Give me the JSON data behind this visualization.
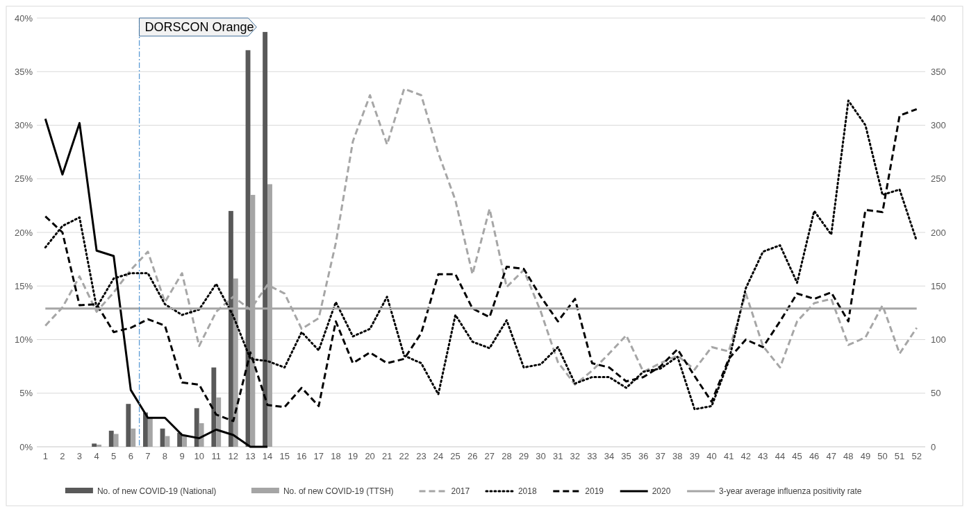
{
  "chart_data": {
    "type": "line",
    "x": [
      1,
      2,
      3,
      4,
      5,
      6,
      7,
      8,
      9,
      10,
      11,
      12,
      13,
      14,
      15,
      16,
      17,
      18,
      19,
      20,
      21,
      22,
      23,
      24,
      25,
      26,
      27,
      28,
      29,
      30,
      31,
      32,
      33,
      34,
      35,
      36,
      37,
      38,
      39,
      40,
      41,
      42,
      43,
      44,
      45,
      46,
      47,
      48,
      49,
      50,
      51,
      52
    ],
    "xlim": [
      0.5,
      52.5
    ],
    "xticks": [
      1,
      2,
      3,
      4,
      5,
      6,
      7,
      8,
      9,
      10,
      11,
      12,
      13,
      14,
      15,
      16,
      17,
      18,
      19,
      20,
      21,
      22,
      23,
      24,
      25,
      26,
      27,
      28,
      29,
      30,
      31,
      32,
      33,
      34,
      35,
      36,
      37,
      38,
      39,
      40,
      41,
      42,
      43,
      44,
      45,
      46,
      47,
      48,
      49,
      50,
      51,
      52
    ],
    "ylim": [
      0,
      40
    ],
    "yticks": [
      {
        "value": 0,
        "label": "0%"
      },
      {
        "value": 5,
        "label": "5%"
      },
      {
        "value": 10,
        "label": "10%"
      },
      {
        "value": 15,
        "label": "15%"
      },
      {
        "value": 20,
        "label": "20%"
      },
      {
        "value": 25,
        "label": "25%"
      },
      {
        "value": 30,
        "label": "30%"
      },
      {
        "value": 35,
        "label": "35%"
      },
      {
        "value": 40,
        "label": "40%"
      }
    ],
    "y2lim": [
      0,
      400
    ],
    "y2ticks": [
      0,
      50,
      100,
      150,
      200,
      250,
      300,
      350,
      400
    ],
    "grid": "y",
    "legend": "bottom",
    "ref_lines": [
      {
        "axis": "x",
        "value": 6.5,
        "label": "DORSCON Orange",
        "color": "#5b9bd5",
        "line_style": "dashed"
      }
    ],
    "series": [
      {
        "name": "No. of new COVID-19 (National)",
        "type": "bar",
        "axis": "y2",
        "color": "#595959",
        "values": [
          0,
          0,
          0,
          3,
          15,
          40,
          32,
          17,
          13,
          36,
          74,
          220,
          370,
          387,
          null,
          null,
          null,
          null,
          null,
          null,
          null,
          null,
          null,
          null,
          null,
          null,
          null,
          null,
          null,
          null,
          null,
          null,
          null,
          null,
          null,
          null,
          null,
          null,
          null,
          null,
          null,
          null,
          null,
          null,
          null,
          null,
          null,
          null,
          null,
          null,
          null,
          null
        ]
      },
      {
        "name": "No. of new COVID-19 (TTSH)",
        "type": "bar",
        "axis": "y2",
        "color": "#a5a5a5",
        "values": [
          0,
          0,
          0,
          2,
          12,
          17,
          27,
          10,
          11,
          22,
          46,
          157,
          235,
          245,
          null,
          null,
          null,
          null,
          null,
          null,
          null,
          null,
          null,
          null,
          null,
          null,
          null,
          null,
          null,
          null,
          null,
          null,
          null,
          null,
          null,
          null,
          null,
          null,
          null,
          null,
          null,
          null,
          null,
          null,
          null,
          null,
          null,
          null,
          null,
          null,
          null,
          null
        ]
      },
      {
        "name": "2017",
        "color": "#a6a6a6",
        "line_style": "dashed",
        "values": [
          11.3,
          13.0,
          15.9,
          12.6,
          14.4,
          16.5,
          18.2,
          13.5,
          16.2,
          9.4,
          12.6,
          14.0,
          12.8,
          15.1,
          14.3,
          11.0,
          12.0,
          19.0,
          28.5,
          32.8,
          28.2,
          33.4,
          32.8,
          27.4,
          23.0,
          16.1,
          22.2,
          14.9,
          16.5,
          12.6,
          7.9,
          5.8,
          7.1,
          8.7,
          10.4,
          7.0,
          7.8,
          8.5,
          7.2,
          9.3,
          8.9,
          14.3,
          9.4,
          7.4,
          11.7,
          13.4,
          13.8,
          9.5,
          10.2,
          13.2,
          8.7,
          11.1
        ]
      },
      {
        "name": "2018",
        "color": "#000000",
        "line_style": "dotted",
        "values": [
          18.6,
          20.6,
          21.4,
          13.0,
          15.7,
          16.2,
          16.2,
          13.3,
          12.3,
          12.8,
          15.2,
          12.2,
          8.2,
          8.0,
          7.4,
          10.7,
          9.0,
          13.5,
          10.3,
          11.0,
          14.0,
          8.5,
          7.8,
          4.9,
          12.3,
          9.8,
          9.2,
          11.8,
          7.4,
          7.7,
          9.3,
          5.9,
          6.5,
          6.5,
          5.5,
          7.0,
          7.3,
          8.4,
          3.5,
          3.8,
          8.0,
          14.8,
          18.2,
          18.8,
          15.3,
          22.0,
          19.8,
          32.3,
          30.0,
          23.5,
          24.0,
          19.2
        ]
      },
      {
        "name": "2019",
        "color": "#000000",
        "line_style": "dashed",
        "values": [
          21.5,
          20.0,
          13.2,
          13.3,
          10.7,
          11.1,
          11.9,
          11.3,
          6.0,
          5.8,
          3.0,
          2.4,
          8.8,
          3.9,
          3.7,
          5.5,
          3.8,
          11.7,
          7.8,
          8.8,
          7.8,
          8.2,
          10.6,
          16.1,
          16.1,
          12.9,
          12.1,
          16.8,
          16.6,
          14.0,
          11.7,
          13.8,
          7.8,
          7.4,
          6.1,
          6.5,
          7.5,
          9.1,
          6.6,
          4.2,
          8.2,
          10.0,
          9.3,
          11.7,
          14.3,
          13.8,
          14.4,
          11.7,
          22.1,
          21.9,
          30.9,
          31.5
        ]
      },
      {
        "name": "2020",
        "color": "#000000",
        "line_style": "solid",
        "values": [
          30.6,
          25.4,
          30.2,
          18.3,
          17.8,
          5.3,
          2.7,
          2.7,
          1.1,
          0.8,
          1.6,
          1.1,
          0,
          0,
          null,
          null,
          null,
          null,
          null,
          null,
          null,
          null,
          null,
          null,
          null,
          null,
          null,
          null,
          null,
          null,
          null,
          null,
          null,
          null,
          null,
          null,
          null,
          null,
          null,
          null,
          null,
          null,
          null,
          null,
          null,
          null,
          null,
          null,
          null,
          null,
          null,
          null
        ]
      },
      {
        "name": "3-year average influenza positivity rate",
        "color": "#a6a6a6",
        "line_style": "solid",
        "values": [
          12.9,
          12.9,
          12.9,
          12.9,
          12.9,
          12.9,
          12.9,
          12.9,
          12.9,
          12.9,
          12.9,
          12.9,
          12.9,
          12.9,
          12.9,
          12.9,
          12.9,
          12.9,
          12.9,
          12.9,
          12.9,
          12.9,
          12.9,
          12.9,
          12.9,
          12.9,
          12.9,
          12.9,
          12.9,
          12.9,
          12.9,
          12.9,
          12.9,
          12.9,
          12.9,
          12.9,
          12.9,
          12.9,
          12.9,
          12.9,
          12.9,
          12.9,
          12.9,
          12.9,
          12.9,
          12.9,
          12.9,
          12.9,
          12.9,
          12.9,
          12.9,
          12.9
        ]
      }
    ]
  }
}
